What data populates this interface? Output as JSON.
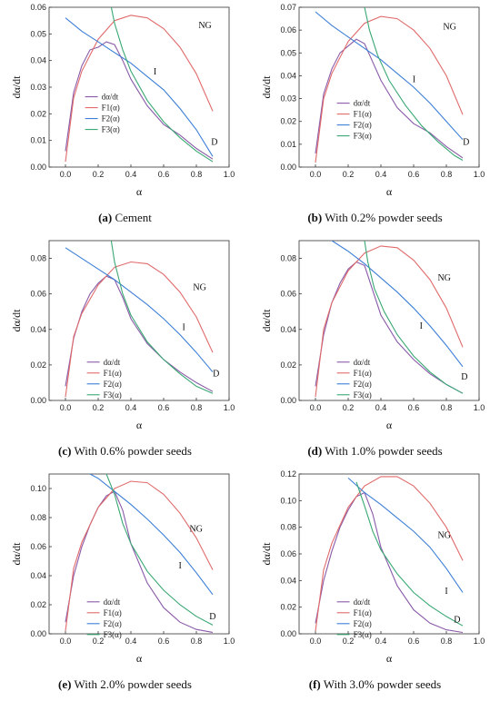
{
  "chart_data": [
    {
      "type": "line",
      "panel_label": "(a)",
      "caption": "Cement",
      "xlabel": "α",
      "ylabel": "dα/dt",
      "xlim": [
        -0.1,
        1.0
      ],
      "ylim": [
        0,
        0.06
      ],
      "xticks": [
        "0.0",
        "0.2",
        "0.4",
        "0.6",
        "0.8",
        "1.0"
      ],
      "yticks": [
        "0.00",
        "0.01",
        "0.02",
        "0.03",
        "0.04",
        "0.05",
        "0.06"
      ],
      "legend": [
        "dα/dt",
        "F1(α)",
        "F2(α)",
        "F3(α)"
      ],
      "annotations": [
        "NG",
        "I",
        "D"
      ],
      "series": [
        {
          "name": "dα/dt",
          "color": "#8a5aa8",
          "x": [
            0.0,
            0.05,
            0.1,
            0.15,
            0.2,
            0.25,
            0.3,
            0.35,
            0.4,
            0.5,
            0.6,
            0.7,
            0.8,
            0.9
          ],
          "y": [
            0.006,
            0.028,
            0.038,
            0.044,
            0.045,
            0.047,
            0.046,
            0.04,
            0.033,
            0.023,
            0.016,
            0.012,
            0.007,
            0.003
          ]
        },
        {
          "name": "F1(α)",
          "color": "#e06b6b",
          "x": [
            0.0,
            0.05,
            0.1,
            0.2,
            0.3,
            0.4,
            0.5,
            0.6,
            0.7,
            0.8,
            0.9
          ],
          "y": [
            0.002,
            0.026,
            0.036,
            0.048,
            0.055,
            0.057,
            0.056,
            0.052,
            0.045,
            0.035,
            0.021
          ]
        },
        {
          "name": "F2(α)",
          "color": "#3d7fd6",
          "x": [
            0.0,
            0.1,
            0.2,
            0.3,
            0.4,
            0.5,
            0.6,
            0.7,
            0.8,
            0.9
          ],
          "y": [
            0.056,
            0.051,
            0.047,
            0.043,
            0.039,
            0.034,
            0.029,
            0.022,
            0.014,
            0.004
          ]
        },
        {
          "name": "F3(α)",
          "color": "#3aa874",
          "x": [
            0.28,
            0.3,
            0.35,
            0.4,
            0.5,
            0.6,
            0.7,
            0.8,
            0.9
          ],
          "y": [
            0.06,
            0.054,
            0.044,
            0.036,
            0.025,
            0.017,
            0.011,
            0.006,
            0.002
          ]
        }
      ]
    },
    {
      "type": "line",
      "panel_label": "(b)",
      "caption": "With 0.2% powder seeds",
      "xlabel": "α",
      "ylabel": "dα/dt",
      "xlim": [
        -0.1,
        1.0
      ],
      "ylim": [
        0,
        0.07
      ],
      "xticks": [
        "0.0",
        "0.2",
        "0.4",
        "0.6",
        "0.8",
        "1.0"
      ],
      "yticks": [
        "0.00",
        "0.01",
        "0.02",
        "0.03",
        "0.04",
        "0.05",
        "0.06",
        "0.07"
      ],
      "legend": [
        "dα/dt",
        "F1(α)",
        "F2(α)",
        "F3(α)"
      ],
      "annotations": [
        "NG",
        "I",
        "D"
      ],
      "series": [
        {
          "name": "dα/dt",
          "color": "#8a5aa8",
          "x": [
            0.0,
            0.05,
            0.1,
            0.15,
            0.2,
            0.25,
            0.3,
            0.35,
            0.4,
            0.5,
            0.6,
            0.7,
            0.8,
            0.9
          ],
          "y": [
            0.006,
            0.032,
            0.043,
            0.05,
            0.053,
            0.056,
            0.054,
            0.046,
            0.038,
            0.026,
            0.019,
            0.015,
            0.009,
            0.004
          ]
        },
        {
          "name": "F1(α)",
          "color": "#e06b6b",
          "x": [
            0.0,
            0.05,
            0.1,
            0.2,
            0.3,
            0.4,
            0.5,
            0.6,
            0.7,
            0.8,
            0.9
          ],
          "y": [
            0.002,
            0.03,
            0.041,
            0.055,
            0.063,
            0.066,
            0.065,
            0.06,
            0.052,
            0.04,
            0.023
          ]
        },
        {
          "name": "F2(α)",
          "color": "#3d7fd6",
          "x": [
            0.0,
            0.1,
            0.2,
            0.3,
            0.4,
            0.5,
            0.6,
            0.7,
            0.8,
            0.9
          ],
          "y": [
            0.068,
            0.062,
            0.057,
            0.052,
            0.047,
            0.041,
            0.035,
            0.028,
            0.02,
            0.012
          ]
        },
        {
          "name": "F3(α)",
          "color": "#3aa874",
          "x": [
            0.3,
            0.33,
            0.38,
            0.45,
            0.55,
            0.65,
            0.75,
            0.85,
            0.9
          ],
          "y": [
            0.07,
            0.06,
            0.049,
            0.038,
            0.027,
            0.018,
            0.011,
            0.005,
            0.003
          ]
        }
      ]
    },
    {
      "type": "line",
      "panel_label": "(c)",
      "caption": "With 0.6% powder seeds",
      "xlabel": "α",
      "ylabel": "dα/dt",
      "xlim": [
        -0.1,
        1.0
      ],
      "ylim": [
        0,
        0.09
      ],
      "xticks": [
        "0.0",
        "0.2",
        "0.4",
        "0.6",
        "0.8",
        "1.0"
      ],
      "yticks": [
        "0.00",
        "0.02",
        "0.04",
        "0.06",
        "0.08"
      ],
      "legend": [
        "dα/dt",
        "F1(α)",
        "F2(α)",
        "F3(α)"
      ],
      "annotations": [
        "NG",
        "I",
        "D"
      ],
      "series": [
        {
          "name": "dα/dt",
          "color": "#8a5aa8",
          "x": [
            0.0,
            0.05,
            0.1,
            0.15,
            0.2,
            0.25,
            0.3,
            0.35,
            0.4,
            0.5,
            0.6,
            0.7,
            0.8,
            0.9
          ],
          "y": [
            0.008,
            0.035,
            0.05,
            0.06,
            0.066,
            0.07,
            0.068,
            0.058,
            0.046,
            0.032,
            0.023,
            0.016,
            0.01,
            0.005
          ]
        },
        {
          "name": "F1(α)",
          "color": "#e06b6b",
          "x": [
            0.0,
            0.05,
            0.1,
            0.2,
            0.3,
            0.4,
            0.5,
            0.6,
            0.7,
            0.8,
            0.9
          ],
          "y": [
            0.002,
            0.036,
            0.049,
            0.065,
            0.075,
            0.078,
            0.077,
            0.071,
            0.061,
            0.047,
            0.027
          ]
        },
        {
          "name": "F2(α)",
          "color": "#3d7fd6",
          "x": [
            0.0,
            0.1,
            0.2,
            0.3,
            0.4,
            0.5,
            0.6,
            0.7,
            0.8,
            0.9
          ],
          "y": [
            0.086,
            0.08,
            0.074,
            0.068,
            0.061,
            0.054,
            0.046,
            0.037,
            0.027,
            0.016
          ]
        },
        {
          "name": "F3(α)",
          "color": "#3aa874",
          "x": [
            0.28,
            0.3,
            0.35,
            0.4,
            0.5,
            0.6,
            0.7,
            0.8,
            0.9
          ],
          "y": [
            0.09,
            0.078,
            0.06,
            0.048,
            0.033,
            0.023,
            0.015,
            0.008,
            0.004
          ]
        }
      ]
    },
    {
      "type": "line",
      "panel_label": "(d)",
      "caption": "With 1.0% powder seeds",
      "xlabel": "α",
      "ylabel": "dα/dt",
      "xlim": [
        -0.1,
        1.0
      ],
      "ylim": [
        0,
        0.09
      ],
      "xticks": [
        "0.0",
        "0.2",
        "0.4",
        "0.6",
        "0.8",
        "1.0"
      ],
      "yticks": [
        "0.00",
        "0.02",
        "0.04",
        "0.06",
        "0.08"
      ],
      "legend": [
        "dα/dt",
        "F1(α)",
        "F2(α)",
        "F3(α)"
      ],
      "annotations": [
        "NG",
        "I",
        "D"
      ],
      "series": [
        {
          "name": "dα/dt",
          "color": "#8a5aa8",
          "x": [
            0.0,
            0.05,
            0.1,
            0.15,
            0.2,
            0.25,
            0.3,
            0.35,
            0.4,
            0.5,
            0.6,
            0.7,
            0.8,
            0.9
          ],
          "y": [
            0.008,
            0.037,
            0.055,
            0.066,
            0.074,
            0.078,
            0.076,
            0.062,
            0.048,
            0.033,
            0.023,
            0.015,
            0.009,
            0.004
          ]
        },
        {
          "name": "F1(α)",
          "color": "#e06b6b",
          "x": [
            0.0,
            0.05,
            0.1,
            0.2,
            0.3,
            0.4,
            0.5,
            0.6,
            0.7,
            0.8,
            0.9
          ],
          "y": [
            0.002,
            0.04,
            0.055,
            0.073,
            0.083,
            0.087,
            0.086,
            0.079,
            0.068,
            0.052,
            0.03
          ]
        },
        {
          "name": "F2(α)",
          "color": "#3d7fd6",
          "x": [
            0.1,
            0.2,
            0.3,
            0.4,
            0.5,
            0.6,
            0.7,
            0.8,
            0.9
          ],
          "y": [
            0.09,
            0.084,
            0.077,
            0.069,
            0.061,
            0.052,
            0.042,
            0.031,
            0.019
          ]
        },
        {
          "name": "F3(α)",
          "color": "#3aa874",
          "x": [
            0.3,
            0.32,
            0.36,
            0.42,
            0.5,
            0.6,
            0.7,
            0.8,
            0.9
          ],
          "y": [
            0.09,
            0.078,
            0.063,
            0.05,
            0.037,
            0.025,
            0.016,
            0.009,
            0.004
          ]
        }
      ]
    },
    {
      "type": "line",
      "panel_label": "(e)",
      "caption": "With 2.0% powder seeds",
      "xlabel": "α",
      "ylabel": "dα/dt",
      "xlim": [
        -0.1,
        1.0
      ],
      "ylim": [
        0,
        0.11
      ],
      "xticks": [
        "0.0",
        "0.2",
        "0.4",
        "0.6",
        "0.8",
        "1.0"
      ],
      "yticks": [
        "0.00",
        "0.02",
        "0.04",
        "0.06",
        "0.08",
        "0.10"
      ],
      "legend": [
        "dα/dt",
        "F1(α)",
        "F2(α)",
        "F3(α)"
      ],
      "annotations": [
        "NG",
        "I",
        "D"
      ],
      "series": [
        {
          "name": "dα/dt",
          "color": "#8a5aa8",
          "x": [
            0.0,
            0.05,
            0.1,
            0.15,
            0.2,
            0.25,
            0.3,
            0.35,
            0.4,
            0.5,
            0.6,
            0.7,
            0.8,
            0.9
          ],
          "y": [
            0.008,
            0.04,
            0.06,
            0.075,
            0.087,
            0.095,
            0.098,
            0.085,
            0.062,
            0.035,
            0.018,
            0.008,
            0.003,
            0.001
          ]
        },
        {
          "name": "F1(α)",
          "color": "#e06b6b",
          "x": [
            0.0,
            0.05,
            0.1,
            0.2,
            0.3,
            0.4,
            0.5,
            0.6,
            0.7,
            0.8,
            0.9
          ],
          "y": [
            0.002,
            0.045,
            0.063,
            0.087,
            0.1,
            0.105,
            0.104,
            0.096,
            0.083,
            0.066,
            0.044
          ]
        },
        {
          "name": "F2(α)",
          "color": "#3d7fd6",
          "x": [
            0.15,
            0.2,
            0.3,
            0.4,
            0.5,
            0.6,
            0.7,
            0.8,
            0.9
          ],
          "y": [
            0.11,
            0.107,
            0.098,
            0.089,
            0.079,
            0.068,
            0.056,
            0.042,
            0.027
          ]
        },
        {
          "name": "F3(α)",
          "color": "#3aa874",
          "x": [
            0.25,
            0.3,
            0.35,
            0.4,
            0.5,
            0.6,
            0.7,
            0.8,
            0.9
          ],
          "y": [
            0.11,
            0.096,
            0.076,
            0.062,
            0.043,
            0.03,
            0.02,
            0.012,
            0.006
          ]
        }
      ]
    },
    {
      "type": "line",
      "panel_label": "(f)",
      "caption": "With 3.0% powder seeds",
      "xlabel": "α",
      "ylabel": "dα/dt",
      "xlim": [
        -0.1,
        1.0
      ],
      "ylim": [
        0,
        0.12
      ],
      "xticks": [
        "0.0",
        "0.2",
        "0.4",
        "0.6",
        "0.8",
        "1.0"
      ],
      "yticks": [
        "0.00",
        "0.02",
        "0.04",
        "0.06",
        "0.08",
        "0.10",
        "0.12"
      ],
      "legend": [
        "dα/dt",
        "F1(α)",
        "F2(α)",
        "F3(α)"
      ],
      "annotations": [
        "NG",
        "I",
        "D"
      ],
      "series": [
        {
          "name": "dα/dt",
          "color": "#8a5aa8",
          "x": [
            0.0,
            0.05,
            0.1,
            0.15,
            0.2,
            0.25,
            0.3,
            0.35,
            0.4,
            0.5,
            0.6,
            0.7,
            0.8,
            0.9
          ],
          "y": [
            0.008,
            0.04,
            0.062,
            0.08,
            0.093,
            0.103,
            0.106,
            0.09,
            0.065,
            0.036,
            0.018,
            0.008,
            0.003,
            0.001
          ]
        },
        {
          "name": "F1(α)",
          "color": "#e06b6b",
          "x": [
            0.0,
            0.05,
            0.1,
            0.2,
            0.3,
            0.4,
            0.5,
            0.6,
            0.7,
            0.8,
            0.9
          ],
          "y": [
            0.002,
            0.048,
            0.068,
            0.095,
            0.111,
            0.118,
            0.118,
            0.111,
            0.098,
            0.08,
            0.055
          ]
        },
        {
          "name": "F2(α)",
          "color": "#3d7fd6",
          "x": [
            0.2,
            0.3,
            0.4,
            0.5,
            0.6,
            0.7,
            0.8,
            0.9
          ],
          "y": [
            0.117,
            0.106,
            0.097,
            0.087,
            0.077,
            0.065,
            0.049,
            0.031
          ]
        },
        {
          "name": "F3(α)",
          "color": "#3aa874",
          "x": [
            0.25,
            0.3,
            0.35,
            0.4,
            0.5,
            0.6,
            0.7,
            0.8,
            0.9
          ],
          "y": [
            0.114,
            0.096,
            0.077,
            0.063,
            0.045,
            0.031,
            0.021,
            0.013,
            0.006
          ]
        }
      ]
    }
  ]
}
